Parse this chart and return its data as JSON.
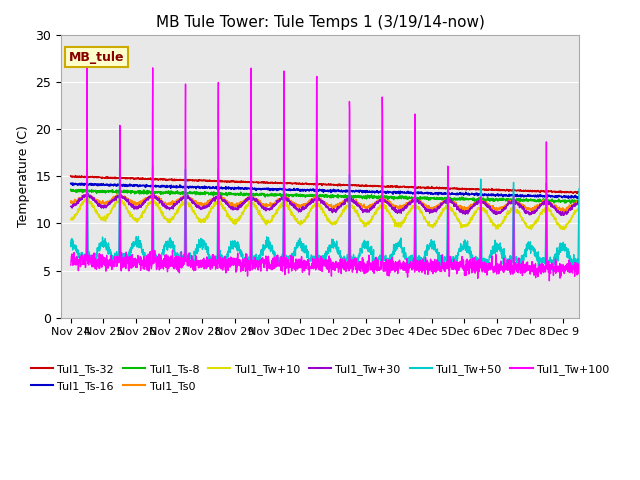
{
  "title": "MB Tule Tower: Tule Temps 1 (3/19/14-now)",
  "ylabel": "Temperature (C)",
  "ylim": [
    0,
    30
  ],
  "background_color": "#e8e8e8",
  "xtick_labels": [
    "Nov 24",
    "Nov 25",
    "Nov 26",
    "Nov 27",
    "Nov 28",
    "Nov 29",
    "Nov 30",
    "Dec 1",
    "Dec 2",
    "Dec 3",
    "Dec 4",
    "Dec 5",
    "Dec 6",
    "Dec 7",
    "Dec 8",
    "Dec 9"
  ],
  "xtick_positions": [
    0,
    1,
    2,
    3,
    4,
    5,
    6,
    7,
    8,
    9,
    10,
    11,
    12,
    13,
    14,
    15
  ],
  "series": {
    "Tul1_Ts-32": {
      "color": "#cc0000"
    },
    "Tul1_Ts-16": {
      "color": "#0000cc"
    },
    "Tul1_Ts-8": {
      "color": "#00bb00"
    },
    "Tul1_Ts0": {
      "color": "#ff8800"
    },
    "Tul1_Tw+10": {
      "color": "#dddd00"
    },
    "Tul1_Tw+30": {
      "color": "#9900cc"
    },
    "Tul1_Tw+50": {
      "color": "#00cccc"
    },
    "Tul1_Tw+100": {
      "color": "#ff00ff"
    }
  },
  "legend_box_color": "#ffffcc",
  "legend_box_edge": "#ccaa00",
  "legend_text": "MB_tule",
  "legend_text_color": "#880000",
  "n_days": 15.5,
  "ppd": 144
}
